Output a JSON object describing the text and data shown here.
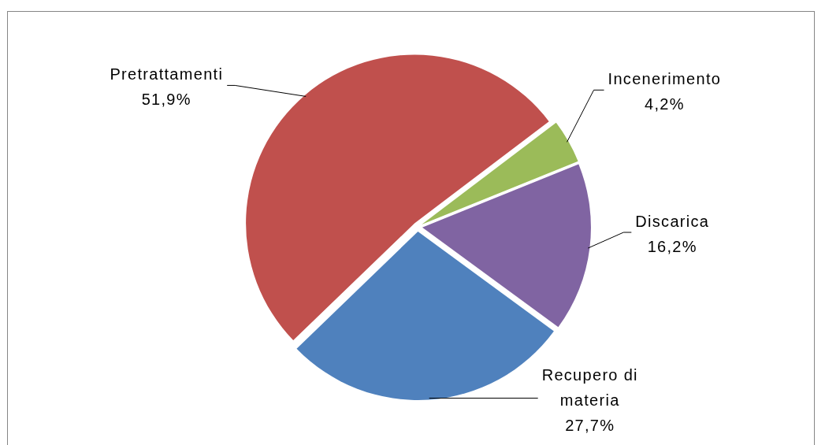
{
  "chart_data": {
    "type": "pie",
    "categories": [
      "Pretrattamenti",
      "Incenerimento",
      "Discarica",
      "Recupero di materia"
    ],
    "values": [
      51.9,
      4.2,
      16.2,
      27.7
    ],
    "colors": [
      "#c0504d",
      "#9bbb59",
      "#8064a2",
      "#4f81bd"
    ],
    "value_labels": [
      "51,9%",
      "4,2%",
      "16,2%",
      "27,7%"
    ]
  }
}
